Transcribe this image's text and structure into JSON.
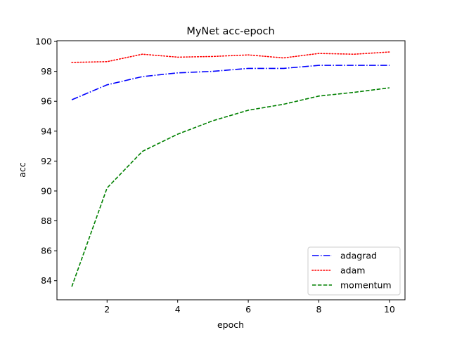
{
  "chart_data": {
    "type": "line",
    "title": "MyNet acc-epoch",
    "xlabel": "epoch",
    "ylabel": "acc",
    "x": [
      1,
      2,
      3,
      4,
      5,
      6,
      7,
      8,
      9,
      10
    ],
    "xlim": [
      0.58,
      10.44
    ],
    "ylim": [
      82.72,
      100.05
    ],
    "xticks": [
      2,
      4,
      6,
      8,
      10
    ],
    "yticks": [
      84,
      86,
      88,
      90,
      92,
      94,
      96,
      98,
      100
    ],
    "grid": false,
    "legend_position": "lower right",
    "series": [
      {
        "name": "adagrad",
        "color": "#0000ff",
        "style": "dashdot",
        "values": [
          96.1,
          97.1,
          97.65,
          97.9,
          98.0,
          98.2,
          98.2,
          98.4,
          98.4,
          98.4
        ]
      },
      {
        "name": "adam",
        "color": "#ff0000",
        "style": "dotted",
        "values": [
          98.6,
          98.65,
          99.15,
          98.95,
          99.0,
          99.1,
          98.9,
          99.2,
          99.15,
          99.3
        ]
      },
      {
        "name": "momentum",
        "color": "#008000",
        "style": "dashed",
        "values": [
          83.6,
          90.2,
          92.65,
          93.8,
          94.7,
          95.4,
          95.8,
          96.35,
          96.6,
          96.9
        ]
      }
    ]
  }
}
